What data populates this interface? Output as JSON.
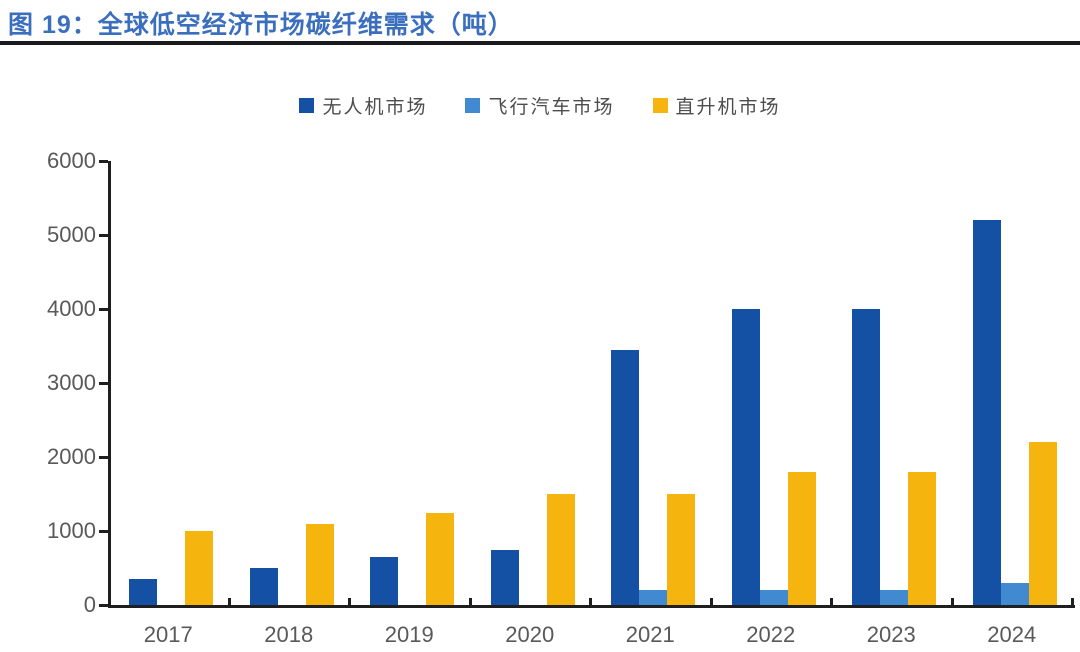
{
  "figure": {
    "title": "图 19：全球低空经济市场碳纤维需求（吨）",
    "title_color": "#3b6fbe",
    "rule_color": "#1b1b1f"
  },
  "chart_data": {
    "type": "bar",
    "title": "全球低空经济市场碳纤维需求（吨）",
    "categories": [
      "2017",
      "2018",
      "2019",
      "2020",
      "2021",
      "2022",
      "2023",
      "2024"
    ],
    "series": [
      {
        "name": "无人机市场",
        "color": "#1450a3",
        "values": [
          350,
          500,
          650,
          750,
          3450,
          4000,
          4000,
          5200
        ]
      },
      {
        "name": "飞行汽车市场",
        "color": "#4189d0",
        "values": [
          0,
          0,
          0,
          0,
          200,
          200,
          200,
          300
        ]
      },
      {
        "name": "直升机市场",
        "color": "#f6b40e",
        "values": [
          1000,
          1100,
          1250,
          1500,
          1500,
          1800,
          1800,
          2200
        ]
      }
    ],
    "xlabel": "",
    "ylabel": "",
    "ylim": [
      0,
      6000
    ],
    "ytick_step": 1000,
    "ytick_labels": [
      "0",
      "1000",
      "2000",
      "3000",
      "4000",
      "5000",
      "6000"
    ],
    "grid": false,
    "legend_position": "top-center",
    "axis_color": "#1f1f1f",
    "tick_label_color": "#595959"
  }
}
